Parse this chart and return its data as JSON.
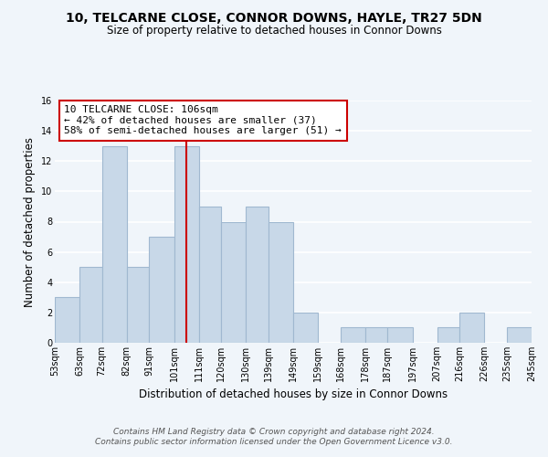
{
  "title": "10, TELCARNE CLOSE, CONNOR DOWNS, HAYLE, TR27 5DN",
  "subtitle": "Size of property relative to detached houses in Connor Downs",
  "xlabel": "Distribution of detached houses by size in Connor Downs",
  "ylabel": "Number of detached properties",
  "bin_edges": [
    53,
    63,
    72,
    82,
    91,
    101,
    111,
    120,
    130,
    139,
    149,
    159,
    168,
    178,
    187,
    197,
    207,
    216,
    226,
    235,
    245
  ],
  "bar_heights": [
    3,
    5,
    13,
    5,
    7,
    13,
    9,
    8,
    9,
    8,
    2,
    0,
    1,
    1,
    1,
    0,
    1,
    2,
    0,
    1
  ],
  "bar_color": "#c8d8e8",
  "bar_edge_color": "#a0b8d0",
  "red_line_x": 106,
  "ylim": [
    0,
    16
  ],
  "yticks": [
    0,
    2,
    4,
    6,
    8,
    10,
    12,
    14,
    16
  ],
  "annotation_line1": "10 TELCARNE CLOSE: 106sqm",
  "annotation_line2": "← 42% of detached houses are smaller (37)",
  "annotation_line3": "58% of semi-detached houses are larger (51) →",
  "annotation_box_color": "#ffffff",
  "annotation_box_edge_color": "#cc0000",
  "footer_line1": "Contains HM Land Registry data © Crown copyright and database right 2024.",
  "footer_line2": "Contains public sector information licensed under the Open Government Licence v3.0.",
  "background_color": "#f0f5fa",
  "grid_color": "#ffffff",
  "title_fontsize": 10,
  "subtitle_fontsize": 8.5,
  "axis_label_fontsize": 8.5,
  "tick_fontsize": 7,
  "annotation_fontsize": 8,
  "footer_fontsize": 6.5
}
